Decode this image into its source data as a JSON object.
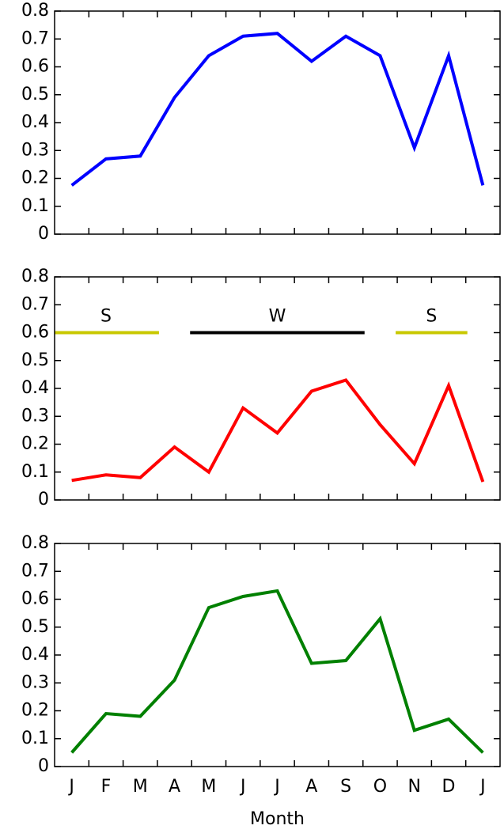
{
  "chart_data": [
    {
      "type": "line",
      "color": "#0000ff",
      "ylim": [
        0,
        0.8
      ],
      "yticks": [
        0,
        0.1,
        0.2,
        0.3,
        0.4,
        0.5,
        0.6,
        0.7,
        0.8
      ],
      "values": [
        0.175,
        0.27,
        0.28,
        0.49,
        0.64,
        0.71,
        0.72,
        0.62,
        0.71,
        0.64,
        0.31,
        0.64,
        0.175
      ]
    },
    {
      "type": "line",
      "color": "#ff0000",
      "ylim": [
        0,
        0.8
      ],
      "yticks": [
        0,
        0.1,
        0.2,
        0.3,
        0.4,
        0.5,
        0.6,
        0.7,
        0.8
      ],
      "values": [
        0.07,
        0.09,
        0.08,
        0.19,
        0.1,
        0.33,
        0.24,
        0.39,
        0.43,
        0.27,
        0.13,
        0.41,
        0.065
      ],
      "annotations": [
        {
          "label": "S",
          "color": "#c8c800",
          "start": 0,
          "end": 3,
          "y": 0.6
        },
        {
          "label": "W",
          "color": "#000000",
          "start": 4,
          "end": 9,
          "y": 0.6
        },
        {
          "label": "S",
          "color": "#c8c800",
          "start": 10,
          "end": 12,
          "y": 0.6
        }
      ]
    },
    {
      "type": "line",
      "color": "#008000",
      "ylim": [
        0,
        0.8
      ],
      "yticks": [
        0,
        0.1,
        0.2,
        0.3,
        0.4,
        0.5,
        0.6,
        0.7,
        0.8
      ],
      "values": [
        0.05,
        0.19,
        0.18,
        0.31,
        0.57,
        0.61,
        0.63,
        0.37,
        0.38,
        0.53,
        0.13,
        0.17,
        0.05
      ],
      "categories": [
        "J",
        "F",
        "M",
        "A",
        "M",
        "J",
        "J",
        "A",
        "S",
        "O",
        "N",
        "D",
        "J"
      ],
      "xlabel": "Month"
    }
  ]
}
